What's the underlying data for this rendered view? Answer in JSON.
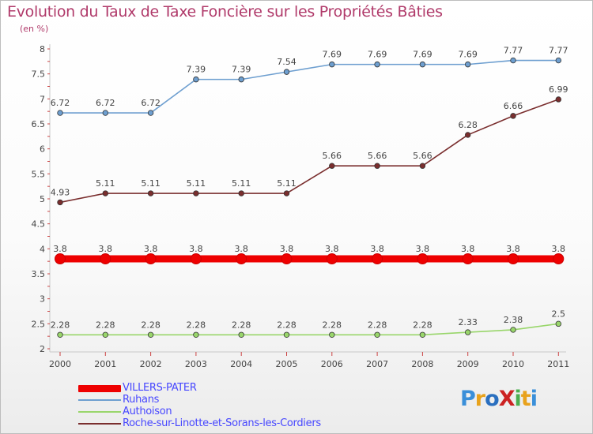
{
  "header": {
    "title": "Evolution du Taux de Taxe Foncière sur les Propriétés Bâties",
    "subtitle": "(en %)"
  },
  "logo": {
    "text": "ProXiti",
    "colors": [
      "#3a8fd9",
      "#e8a21c",
      "#2a6fbf",
      "#cc2222",
      "#4caf50",
      "#e8a21c",
      "#3a8fd9"
    ]
  },
  "chart_data": {
    "type": "line",
    "title": "Evolution du Taux de Taxe Foncière sur les Propriétés Bâties",
    "ylabel": "(en %)",
    "xlabel": "",
    "categories": [
      "2000",
      "2001",
      "2002",
      "2003",
      "2004",
      "2005",
      "2006",
      "2007",
      "2008",
      "2009",
      "2010",
      "2011"
    ],
    "ylim": [
      2,
      8
    ],
    "yticks": [
      "2",
      "2.5",
      "3",
      "3.5",
      "4",
      "4.5",
      "5",
      "5.5",
      "6",
      "6.5",
      "7",
      "7.5",
      "8"
    ],
    "grid": false,
    "legend_position": "bottom-left",
    "series": [
      {
        "name": "VILLERS-PATER",
        "color": "#ee0000",
        "values": [
          3.8,
          3.8,
          3.8,
          3.8,
          3.8,
          3.8,
          3.8,
          3.8,
          3.8,
          3.8,
          3.8,
          3.8
        ],
        "labels": [
          "3.8",
          "3.8",
          "3.8",
          "3.8",
          "3.8",
          "3.8",
          "3.8",
          "3.8",
          "3.8",
          "3.8",
          "3.8",
          "3.8"
        ]
      },
      {
        "name": "Ruhans",
        "color": "#6e9fd0",
        "values": [
          6.72,
          6.72,
          6.72,
          7.39,
          7.39,
          7.54,
          7.69,
          7.69,
          7.69,
          7.69,
          7.77,
          7.77
        ],
        "labels": [
          "6.72",
          "6.72",
          "6.72",
          "7.39",
          "7.39",
          "7.54",
          "7.69",
          "7.69",
          "7.69",
          "7.69",
          "7.77",
          "7.77"
        ]
      },
      {
        "name": "Authoison",
        "color": "#99d66b",
        "values": [
          2.28,
          2.28,
          2.28,
          2.28,
          2.28,
          2.28,
          2.28,
          2.28,
          2.28,
          2.33,
          2.38,
          2.5
        ],
        "labels": [
          "2.28",
          "2.28",
          "2.28",
          "2.28",
          "2.28",
          "2.28",
          "2.28",
          "2.28",
          "2.28",
          "2.33",
          "2.38",
          "2.5"
        ]
      },
      {
        "name": "Roche-sur-Linotte-et-Sorans-les-Cordiers",
        "color": "#7a2e2e",
        "values": [
          4.93,
          5.11,
          5.11,
          5.11,
          5.11,
          5.11,
          5.66,
          5.66,
          5.66,
          6.28,
          6.66,
          6.99
        ],
        "labels": [
          "4.93",
          "5.11",
          "5.11",
          "5.11",
          "5.11",
          "5.11",
          "5.66",
          "5.66",
          "5.66",
          "6.28",
          "6.66",
          "6.99"
        ]
      }
    ]
  }
}
